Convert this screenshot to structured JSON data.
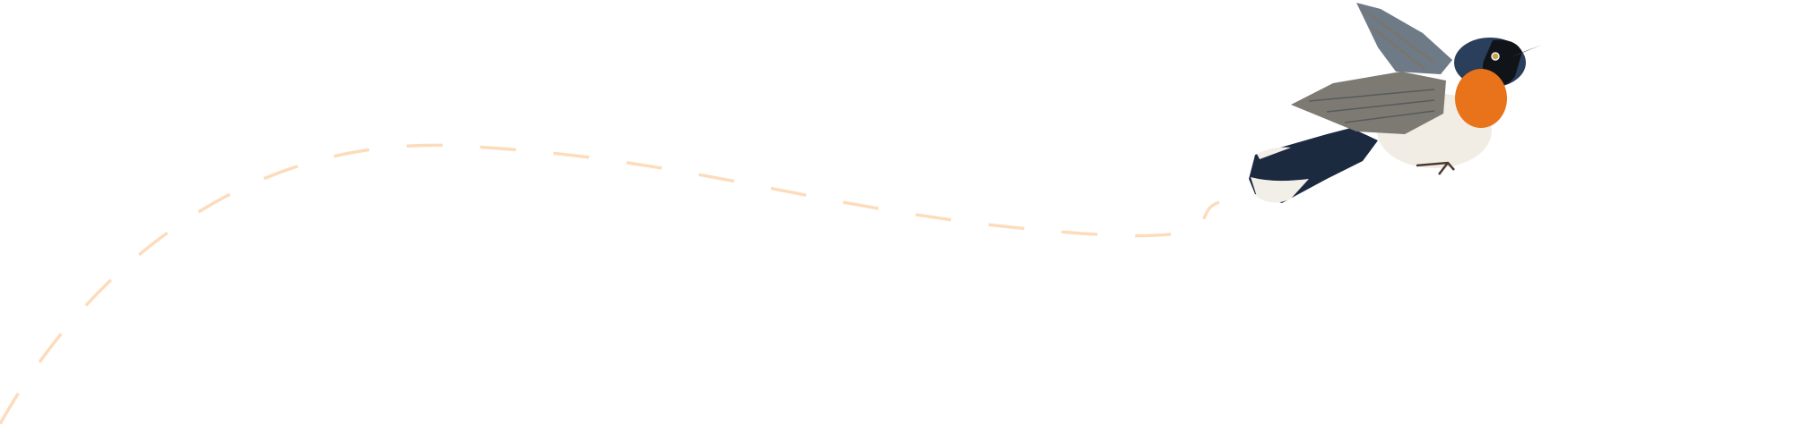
{
  "illustration": {
    "subject": "bird-in-flight",
    "colors": {
      "background": "#ffffff",
      "flight_path": "#fddcbc",
      "head": "#2a3f5c",
      "throat": "#e8731a",
      "belly": "#f1ede4",
      "wing": "#7c7a72",
      "tail": "#1c2a40"
    }
  }
}
